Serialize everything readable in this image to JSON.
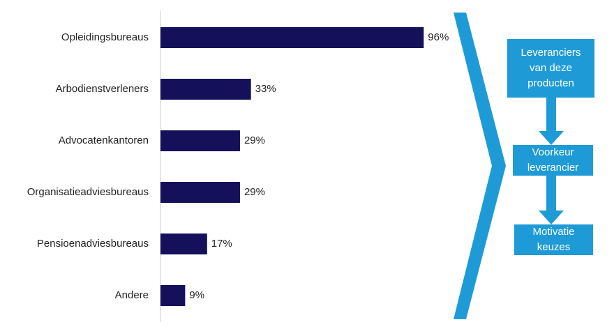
{
  "chart_data": {
    "type": "bar",
    "orientation": "horizontal",
    "categories": [
      "Opleidingsbureaus",
      "Arbodienstverleners",
      "Advocatenkantoren",
      "Organisatieadviesbureaus",
      "Pensioenadviesbureaus",
      "Andere"
    ],
    "values": [
      96,
      33,
      29,
      29,
      17,
      9
    ],
    "value_labels": [
      "96%",
      "33%",
      "29%",
      "29%",
      "17%",
      "9%"
    ],
    "color": "#14105a"
  },
  "diagram": {
    "color": "#1e9bd7",
    "boxes": [
      {
        "lines": [
          "Leveranciers",
          "van deze",
          "producten"
        ]
      },
      {
        "lines": [
          "Voorkeur",
          "leverancier"
        ]
      },
      {
        "lines": [
          "Motivatie",
          "keuzes"
        ]
      }
    ]
  }
}
